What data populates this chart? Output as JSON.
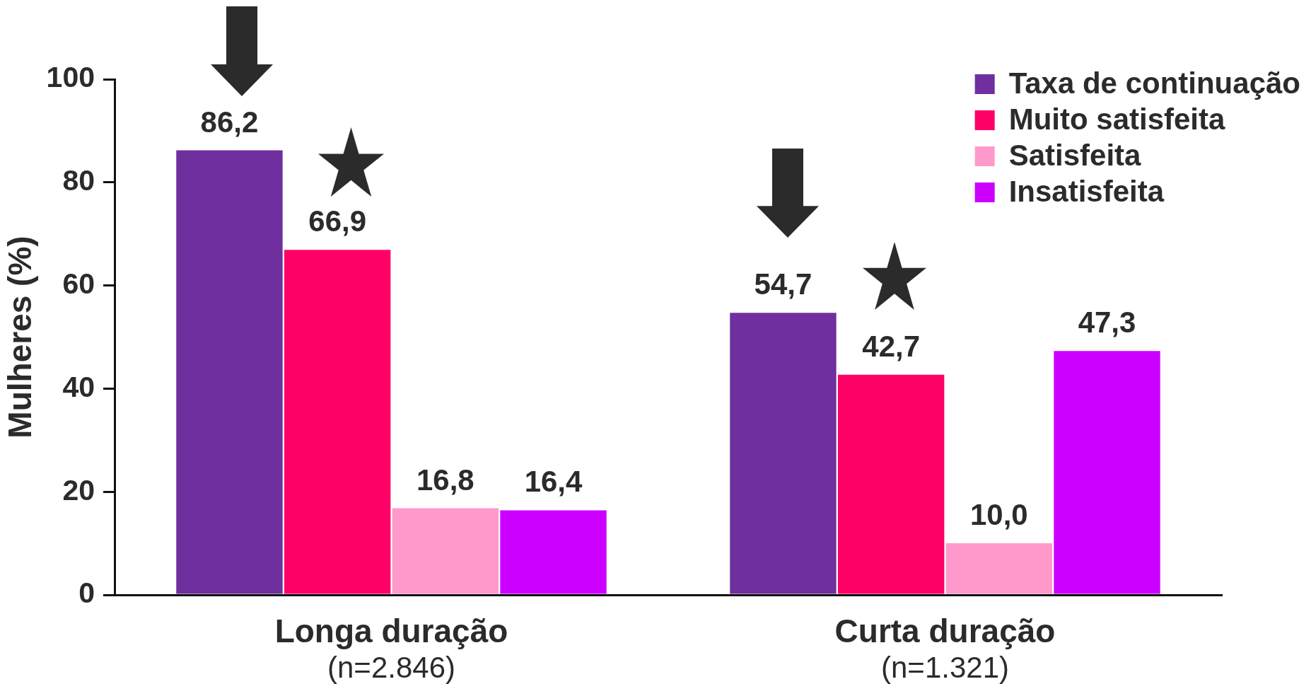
{
  "chart_data": {
    "type": "bar",
    "ylabel": "Mulheres (%)",
    "categories": [
      "Longa duração",
      "Curta duração"
    ],
    "series": [
      {
        "name": "Taxa de continuação",
        "color": "#6f2f9e",
        "values": [
          86.2,
          54.7
        ],
        "value_labels": [
          "86,2",
          "54,7"
        ]
      },
      {
        "name": "Muito satisfeita",
        "color": "#ff0066",
        "values": [
          66.9,
          42.7
        ],
        "value_labels": [
          "66,9",
          "42,7"
        ]
      },
      {
        "name": "Satisfeita",
        "color": "#ff99cc",
        "values": [
          16.8,
          10.0
        ],
        "value_labels": [
          "16,8",
          "10,0"
        ]
      },
      {
        "name": "Insatisfeita",
        "color": "#cc00ff",
        "values": [
          16.4,
          47.3
        ],
        "value_labels": [
          "16,4",
          "47,3"
        ]
      }
    ],
    "ylim": [
      0,
      100
    ],
    "yticks": [
      0,
      20,
      40,
      60,
      80,
      100
    ],
    "legend": "top right",
    "annotations": [
      "(n=2.846)",
      "(n=1.321)"
    ]
  }
}
